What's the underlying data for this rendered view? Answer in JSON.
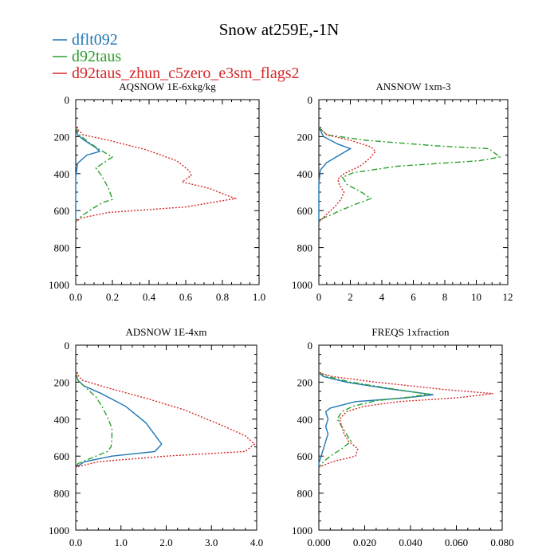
{
  "figure": {
    "title": "Snow at259E,-1N",
    "legend": [
      {
        "name": "dflt092",
        "color": "#1f77b4",
        "dash": "solid"
      },
      {
        "name": "d92taus",
        "color": "#2ca02c",
        "dash": "dashdot"
      },
      {
        "name": "d92taus_zhun_c5zero_e3sm_flags2",
        "color": "#d62728",
        "dash": "dotted"
      }
    ]
  },
  "chart_data": [
    {
      "type": "line",
      "title": "AQSNOW  1E-6xkg/kg",
      "xlabel": "",
      "ylabel": "",
      "xlim": [
        0,
        1.0
      ],
      "ylim": [
        1000,
        0
      ],
      "xticks": [
        "0.0",
        "0.2",
        "0.4",
        "0.6",
        "0.8",
        "1.0"
      ],
      "xtick_values": [
        0,
        0.2,
        0.4,
        0.6,
        0.8,
        1.0
      ],
      "yticks": [
        "0",
        "200",
        "400",
        "600",
        "800",
        "1000"
      ],
      "ytick_values": [
        0,
        200,
        400,
        600,
        800,
        1000
      ],
      "series": [
        {
          "name": "dflt092",
          "points": [
            [
              0,
              150
            ],
            [
              0.01,
              190
            ],
            [
              0.04,
              215
            ],
            [
              0.11,
              260
            ],
            [
              0.13,
              280
            ],
            [
              0.06,
              300
            ],
            [
              0.01,
              345
            ],
            [
              0,
              420
            ],
            [
              0,
              500
            ],
            [
              0,
              560
            ],
            [
              0,
              620
            ],
            [
              0,
              660
            ]
          ]
        },
        {
          "name": "d92taus",
          "points": [
            [
              0,
              150
            ],
            [
              0.02,
              190
            ],
            [
              0.07,
              230
            ],
            [
              0.13,
              270
            ],
            [
              0.2,
              310
            ],
            [
              0.11,
              370
            ],
            [
              0.14,
              410
            ],
            [
              0.18,
              480
            ],
            [
              0.2,
              540
            ],
            [
              0.15,
              555
            ],
            [
              0.09,
              590
            ],
            [
              0.03,
              630
            ],
            [
              0,
              660
            ]
          ]
        },
        {
          "name": "d92taus_zhun_c5zero_e3sm_flags2",
          "points": [
            [
              0,
              150
            ],
            [
              0.04,
              190
            ],
            [
              0.18,
              220
            ],
            [
              0.38,
              270
            ],
            [
              0.55,
              330
            ],
            [
              0.62,
              385
            ],
            [
              0.63,
              410
            ],
            [
              0.58,
              445
            ],
            [
              0.73,
              480
            ],
            [
              0.87,
              535
            ],
            [
              0.6,
              580
            ],
            [
              0.18,
              610
            ],
            [
              0.03,
              640
            ],
            [
              0,
              660
            ]
          ]
        }
      ]
    },
    {
      "type": "line",
      "title": "ANSNOW  1xm-3",
      "xlabel": "",
      "ylabel": "",
      "xlim": [
        0,
        12
      ],
      "ylim": [
        1000,
        0
      ],
      "xticks": [
        "0",
        "2",
        "4",
        "6",
        "8",
        "10",
        "12"
      ],
      "xtick_values": [
        0,
        2,
        4,
        6,
        8,
        10,
        12
      ],
      "yticks": [
        "0",
        "200",
        "400",
        "600",
        "800",
        "1000"
      ],
      "ytick_values": [
        0,
        200,
        400,
        600,
        800,
        1000
      ],
      "series": [
        {
          "name": "dflt092",
          "points": [
            [
              0,
              150
            ],
            [
              0.3,
              200
            ],
            [
              1.2,
              240
            ],
            [
              2.0,
              265
            ],
            [
              1.3,
              300
            ],
            [
              0.5,
              340
            ],
            [
              0.1,
              380
            ],
            [
              0,
              450
            ],
            [
              0,
              550
            ],
            [
              0,
              660
            ]
          ]
        },
        {
          "name": "d92taus",
          "points": [
            [
              0,
              150
            ],
            [
              0.5,
              190
            ],
            [
              3.0,
              220
            ],
            [
              7.5,
              250
            ],
            [
              10.8,
              265
            ],
            [
              11.5,
              310
            ],
            [
              10.2,
              330
            ],
            [
              5.0,
              360
            ],
            [
              2.2,
              395
            ],
            [
              1.5,
              420
            ],
            [
              1.8,
              460
            ],
            [
              2.7,
              500
            ],
            [
              3.3,
              535
            ],
            [
              2.2,
              570
            ],
            [
              1.1,
              610
            ],
            [
              0.3,
              640
            ],
            [
              0,
              660
            ]
          ]
        },
        {
          "name": "d92taus_zhun_c5zero_e3sm_flags2",
          "points": [
            [
              0,
              150
            ],
            [
              0.5,
              190
            ],
            [
              2.0,
              220
            ],
            [
              3.3,
              255
            ],
            [
              3.6,
              280
            ],
            [
              3.2,
              320
            ],
            [
              2.6,
              360
            ],
            [
              1.6,
              400
            ],
            [
              1.2,
              430
            ],
            [
              1.3,
              460
            ],
            [
              1.6,
              500
            ],
            [
              1.4,
              540
            ],
            [
              1.0,
              580
            ],
            [
              0.5,
              620
            ],
            [
              0,
              660
            ]
          ]
        }
      ]
    },
    {
      "type": "line",
      "title": "ADSNOW  1E-4xm",
      "xlabel": "",
      "ylabel": "",
      "xlim": [
        0,
        4.0
      ],
      "ylim": [
        1000,
        0
      ],
      "xticks": [
        "0.0",
        "1.0",
        "2.0",
        "3.0",
        "4.0"
      ],
      "xtick_values": [
        0,
        1.0,
        2.0,
        3.0,
        4.0
      ],
      "yticks": [
        "0",
        "200",
        "400",
        "600",
        "800",
        "1000"
      ],
      "ytick_values": [
        0,
        200,
        400,
        600,
        800,
        1000
      ],
      "series": [
        {
          "name": "dflt092",
          "points": [
            [
              0,
              150
            ],
            [
              0.05,
              190
            ],
            [
              0.18,
              220
            ],
            [
              0.55,
              260
            ],
            [
              1.1,
              330
            ],
            [
              1.55,
              420
            ],
            [
              1.9,
              535
            ],
            [
              1.75,
              575
            ],
            [
              0.8,
              600
            ],
            [
              0.2,
              630
            ],
            [
              0,
              660
            ]
          ]
        },
        {
          "name": "d92taus",
          "points": [
            [
              0,
              150
            ],
            [
              0.05,
              190
            ],
            [
              0.2,
              225
            ],
            [
              0.45,
              280
            ],
            [
              0.6,
              340
            ],
            [
              0.72,
              400
            ],
            [
              0.8,
              450
            ],
            [
              0.8,
              510
            ],
            [
              0.78,
              550
            ],
            [
              0.7,
              575
            ],
            [
              0.35,
              610
            ],
            [
              0.05,
              640
            ],
            [
              0,
              660
            ]
          ]
        },
        {
          "name": "d92taus_zhun_c5zero_e3sm_flags2",
          "points": [
            [
              0,
              150
            ],
            [
              0.15,
              190
            ],
            [
              0.7,
              230
            ],
            [
              1.6,
              290
            ],
            [
              2.4,
              350
            ],
            [
              3.2,
              430
            ],
            [
              3.75,
              490
            ],
            [
              3.95,
              535
            ],
            [
              3.75,
              575
            ],
            [
              2.0,
              600
            ],
            [
              0.5,
              630
            ],
            [
              0,
              660
            ]
          ]
        }
      ]
    },
    {
      "type": "line",
      "title": "FREQS  1xfraction",
      "xlabel": "",
      "ylabel": "",
      "xlim": [
        0,
        0.08
      ],
      "ylim": [
        1000,
        0
      ],
      "xticks": [
        "0.000",
        "0.020",
        "0.040",
        "0.060",
        "0.080"
      ],
      "xtick_values": [
        0,
        0.02,
        0.04,
        0.06,
        0.08
      ],
      "yticks": [
        "0",
        "200",
        "400",
        "600",
        "800",
        "1000"
      ],
      "ytick_values": [
        0,
        200,
        400,
        600,
        800,
        1000
      ],
      "series": [
        {
          "name": "dflt092",
          "points": [
            [
              0,
              150
            ],
            [
              0.002,
              170
            ],
            [
              0.012,
              200
            ],
            [
              0.03,
              235
            ],
            [
              0.05,
              268
            ],
            [
              0.038,
              285
            ],
            [
              0.016,
              305
            ],
            [
              0.005,
              340
            ],
            [
              0.003,
              360
            ],
            [
              0.004,
              400
            ],
            [
              0.003,
              440
            ],
            [
              0.004,
              480
            ],
            [
              0.003,
              520
            ],
            [
              0.002,
              560
            ],
            [
              0.001,
              600
            ],
            [
              0,
              640
            ],
            [
              0,
              660
            ]
          ]
        },
        {
          "name": "d92taus",
          "points": [
            [
              0,
              150
            ],
            [
              0.004,
              170
            ],
            [
              0.014,
              200
            ],
            [
              0.034,
              240
            ],
            [
              0.048,
              265
            ],
            [
              0.04,
              280
            ],
            [
              0.025,
              300
            ],
            [
              0.015,
              330
            ],
            [
              0.01,
              360
            ],
            [
              0.008,
              400
            ],
            [
              0.01,
              440
            ],
            [
              0.012,
              480
            ],
            [
              0.014,
              520
            ],
            [
              0.01,
              560
            ],
            [
              0.005,
              600
            ],
            [
              0.002,
              630
            ],
            [
              0,
              660
            ]
          ]
        },
        {
          "name": "d92taus_zhun_c5zero_e3sm_flags2",
          "points": [
            [
              0,
              150
            ],
            [
              0.006,
              170
            ],
            [
              0.025,
              200
            ],
            [
              0.055,
              240
            ],
            [
              0.076,
              262
            ],
            [
              0.06,
              285
            ],
            [
              0.035,
              305
            ],
            [
              0.02,
              330
            ],
            [
              0.012,
              360
            ],
            [
              0.009,
              400
            ],
            [
              0.01,
              440
            ],
            [
              0.011,
              480
            ],
            [
              0.013,
              520
            ],
            [
              0.017,
              560
            ],
            [
              0.016,
              600
            ],
            [
              0.006,
              630
            ],
            [
              0,
              660
            ]
          ]
        }
      ]
    }
  ]
}
